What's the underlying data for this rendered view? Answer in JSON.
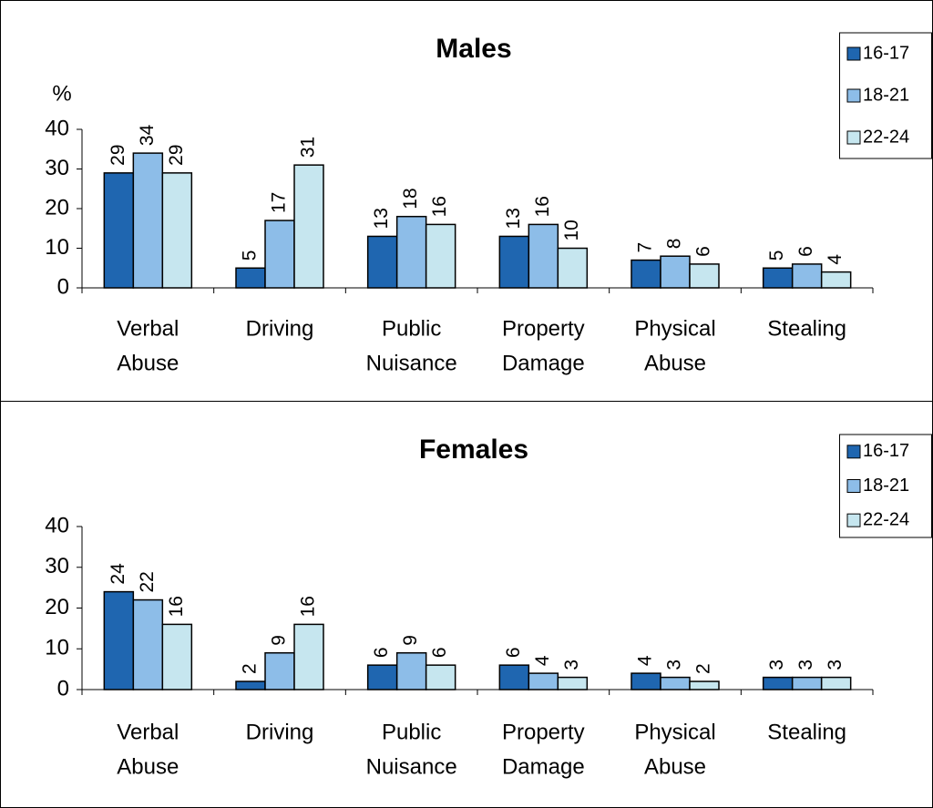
{
  "chart_data": [
    {
      "type": "bar",
      "title": "Males",
      "y_label": "%",
      "categories": [
        [
          "Verbal",
          "Abuse"
        ],
        [
          "Driving"
        ],
        [
          "Public",
          "Nuisance"
        ],
        [
          "Property",
          "Damage"
        ],
        [
          "Physical",
          "Abuse"
        ],
        [
          "Stealing"
        ]
      ],
      "series": [
        {
          "name": "16-17",
          "color": "#1f66b0",
          "values": [
            29,
            5,
            13,
            13,
            7,
            5
          ]
        },
        {
          "name": "18-21",
          "color": "#8dbde8",
          "values": [
            34,
            17,
            18,
            16,
            8,
            6
          ]
        },
        {
          "name": "22-24",
          "color": "#c6e6ef",
          "values": [
            29,
            31,
            16,
            10,
            6,
            4
          ]
        }
      ],
      "ylim": [
        0,
        40
      ],
      "yticks": [
        0,
        10,
        20,
        30,
        40
      ],
      "legend": "top-right"
    },
    {
      "type": "bar",
      "title": "Females",
      "categories": [
        [
          "Verbal",
          "Abuse"
        ],
        [
          "Driving"
        ],
        [
          "Public",
          "Nuisance"
        ],
        [
          "Property",
          "Damage"
        ],
        [
          "Physical",
          "Abuse"
        ],
        [
          "Stealing"
        ]
      ],
      "series": [
        {
          "name": "16-17",
          "color": "#1f66b0",
          "values": [
            24,
            2,
            6,
            6,
            4,
            3
          ]
        },
        {
          "name": "18-21",
          "color": "#8dbde8",
          "values": [
            22,
            9,
            9,
            4,
            3,
            3
          ]
        },
        {
          "name": "22-24",
          "color": "#c6e6ef",
          "values": [
            16,
            16,
            6,
            3,
            2,
            3
          ]
        }
      ],
      "ylim": [
        0,
        40
      ],
      "yticks": [
        0,
        10,
        20,
        30,
        40
      ],
      "legend": "top-right"
    }
  ]
}
